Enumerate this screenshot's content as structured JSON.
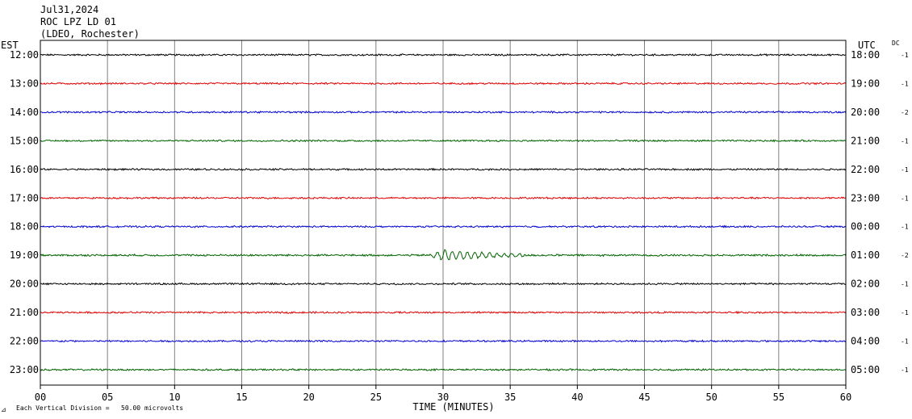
{
  "header": {
    "date": "Jul31,2024",
    "station": "ROC LPZ LD 01",
    "network": "(LDEO, Rochester)"
  },
  "labels": {
    "left_tz": "EST",
    "right_tz": "UTC",
    "dc_header": "DC",
    "xlabel": "TIME (MINUTES)",
    "scale_note": "Each Vertical Division =   50.00 microvolts",
    "corner_mark": "⊿"
  },
  "chart_data": {
    "type": "line",
    "title": "",
    "xlabel": "TIME (MINUTES)",
    "xlim": [
      0,
      60
    ],
    "x_ticks": [
      "00",
      "05",
      "10",
      "15",
      "20",
      "25",
      "30",
      "35",
      "40",
      "45",
      "50",
      "55",
      "60"
    ],
    "grid": true,
    "trace_colors": [
      "#000000",
      "#e00000",
      "#0000d0",
      "#006400"
    ],
    "rows": [
      {
        "left": "12:00",
        "right": "18:00",
        "dc": "-1",
        "noise": 0.9
      },
      {
        "left": "13:00",
        "right": "19:00",
        "dc": "-1",
        "noise": 0.9
      },
      {
        "left": "14:00",
        "right": "20:00",
        "dc": "-2",
        "noise": 0.9
      },
      {
        "left": "15:00",
        "right": "21:00",
        "dc": "-1",
        "noise": 0.9
      },
      {
        "left": "16:00",
        "right": "22:00",
        "dc": "-1",
        "noise": 0.9
      },
      {
        "left": "17:00",
        "right": "23:00",
        "dc": "-1",
        "noise": 0.9
      },
      {
        "left": "18:00",
        "right": "00:00",
        "dc": "-1",
        "noise": 0.9
      },
      {
        "left": "19:00",
        "right": "01:00",
        "dc": "-2",
        "noise": 1.0,
        "events": [
          {
            "start_min": 28.8,
            "end_min": 36.0,
            "peak_min": 30.0,
            "amplitude": 6
          }
        ]
      },
      {
        "left": "20:00",
        "right": "02:00",
        "dc": "-1",
        "noise": 0.9
      },
      {
        "left": "21:00",
        "right": "03:00",
        "dc": "-1",
        "noise": 0.9
      },
      {
        "left": "22:00",
        "right": "04:00",
        "dc": "-1",
        "noise": 0.9
      },
      {
        "left": "23:00",
        "right": "05:00",
        "dc": "-1",
        "noise": 0.9
      }
    ]
  }
}
